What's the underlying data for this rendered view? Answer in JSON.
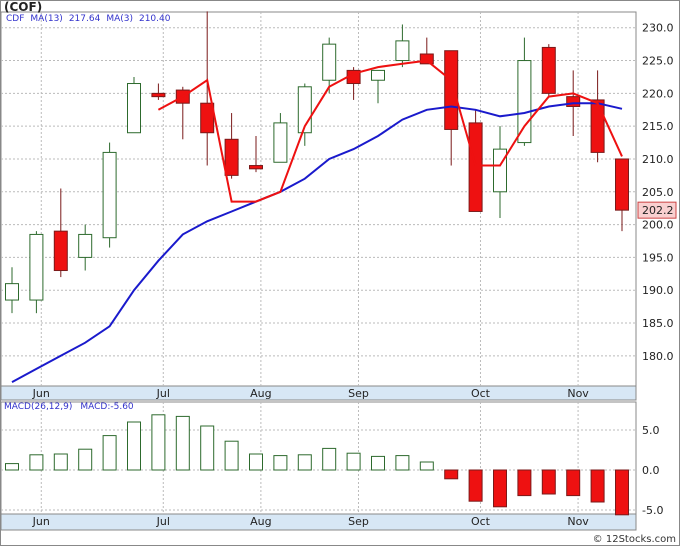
{
  "header": {
    "title": "(COF)",
    "legend": [
      "CDF",
      "MA(13)",
      "217.64",
      "MA(3)",
      "210.40"
    ]
  },
  "macd_panel": {
    "label": "MACD(26,12,9)",
    "value_label": "MACD:-5.60"
  },
  "footer": {
    "credit": "© 12Stocks.com"
  },
  "last_price_label": "202.2",
  "colors": {
    "up_candle": "#2d6a2d",
    "down_candle": "#ee1111",
    "ma13": "#1a1acc",
    "ma3": "#ee1111",
    "grid": "#bbbbbb",
    "axis_band": "#d7e7f5"
  },
  "chart_data": [
    {
      "type": "candlestick",
      "title": "(COF)",
      "x_ticks": [
        "Jun",
        "Jul",
        "Aug",
        "Sep",
        "Oct",
        "Nov"
      ],
      "x_tick_positions": [
        1.2,
        6.2,
        10.2,
        14.2,
        19.2,
        23.2
      ],
      "y_ticks": [
        180,
        185,
        190,
        195,
        200,
        205,
        210,
        215,
        220,
        225,
        230
      ],
      "y_tick_labels": [
        "180.0",
        "185.0",
        "190.0",
        "195.0",
        "200.0",
        "205.0",
        "210.0",
        "215.0",
        "220.0",
        "225.0",
        "230.0"
      ],
      "ylim": [
        175.4,
        232.4
      ],
      "grid": true,
      "candles": [
        {
          "o": 188.5,
          "h": 193.5,
          "l": 186.5,
          "c": 191.0
        },
        {
          "o": 188.5,
          "h": 199.0,
          "l": 186.5,
          "c": 198.5
        },
        {
          "o": 199.0,
          "h": 205.5,
          "l": 192.0,
          "c": 193.0
        },
        {
          "o": 195.0,
          "h": 200.0,
          "l": 193.0,
          "c": 198.5
        },
        {
          "o": 198.0,
          "h": 212.5,
          "l": 196.5,
          "c": 211.0
        },
        {
          "o": 214.0,
          "h": 222.5,
          "l": 214.0,
          "c": 221.5
        },
        {
          "o": 220.0,
          "h": 221.5,
          "l": 219.0,
          "c": 219.5
        },
        {
          "o": 220.5,
          "h": 221.0,
          "l": 213.0,
          "c": 218.5
        },
        {
          "o": 218.5,
          "h": 232.5,
          "l": 209.0,
          "c": 214.0
        },
        {
          "o": 213.0,
          "h": 217.0,
          "l": 207.0,
          "c": 207.5
        },
        {
          "o": 209.0,
          "h": 213.5,
          "l": 208.0,
          "c": 208.5
        },
        {
          "o": 209.5,
          "h": 217.0,
          "l": 209.5,
          "c": 215.5
        },
        {
          "o": 214.0,
          "h": 221.5,
          "l": 212.0,
          "c": 221.0
        },
        {
          "o": 222.0,
          "h": 228.5,
          "l": 220.0,
          "c": 227.5
        },
        {
          "o": 223.5,
          "h": 224.0,
          "l": 219.0,
          "c": 221.5
        },
        {
          "o": 222.0,
          "h": 223.5,
          "l": 218.5,
          "c": 223.5
        },
        {
          "o": 225.0,
          "h": 230.5,
          "l": 224.0,
          "c": 228.0
        },
        {
          "o": 226.0,
          "h": 228.5,
          "l": 224.5,
          "c": 224.5
        },
        {
          "o": 226.5,
          "h": 226.5,
          "l": 209.0,
          "c": 214.5
        },
        {
          "o": 215.5,
          "h": 217.5,
          "l": 202.0,
          "c": 202.0
        },
        {
          "o": 205.0,
          "h": 215.0,
          "l": 201.0,
          "c": 211.5
        },
        {
          "o": 212.5,
          "h": 228.5,
          "l": 212.0,
          "c": 225.0
        },
        {
          "o": 227.0,
          "h": 227.5,
          "l": 219.5,
          "c": 220.0
        },
        {
          "o": 219.5,
          "h": 223.5,
          "l": 213.5,
          "c": 218.0
        },
        {
          "o": 219.0,
          "h": 223.5,
          "l": 209.5,
          "c": 211.0
        },
        {
          "o": 210.0,
          "h": 210.0,
          "l": 199.0,
          "c": 202.2
        }
      ],
      "series": [
        {
          "name": "MA(13)",
          "values": [
            176.0,
            178.0,
            180.0,
            182.0,
            184.5,
            190.0,
            194.5,
            198.5,
            200.5,
            202.0,
            203.5,
            205.0,
            207.0,
            210.0,
            211.5,
            213.5,
            216.0,
            217.5,
            218.0,
            217.5,
            216.5,
            217.0,
            218.0,
            218.5,
            218.5,
            217.64
          ]
        },
        {
          "name": "MA(3)",
          "values": [
            190.0,
            190.5,
            193.0,
            196.0,
            200.5,
            210.0,
            217.5,
            219.5,
            222.0,
            203.5,
            203.5,
            205.0,
            215.0,
            221.0,
            223.0,
            224.0,
            224.5,
            225.0,
            222.0,
            209.0,
            209.0,
            215.0,
            219.5,
            220.0,
            218.5,
            210.4
          ]
        }
      ],
      "ma3_visible_from_index": 6,
      "last_value": 202.2
    },
    {
      "type": "bar",
      "title": "MACD(26,12,9)",
      "y_ticks": [
        -5,
        0,
        5
      ],
      "y_tick_labels": [
        "-5.0",
        "0.0",
        "5.0"
      ],
      "ylim": [
        -5.5,
        8.5
      ],
      "grid": true,
      "values": [
        0.8,
        1.9,
        2.0,
        2.6,
        4.3,
        6.0,
        6.9,
        6.7,
        5.5,
        3.6,
        2.0,
        1.8,
        1.9,
        2.7,
        2.1,
        1.7,
        1.8,
        1.0,
        -1.1,
        -3.9,
        -4.6,
        -3.2,
        -3.0,
        -3.2,
        -4.0,
        -5.6
      ]
    }
  ]
}
